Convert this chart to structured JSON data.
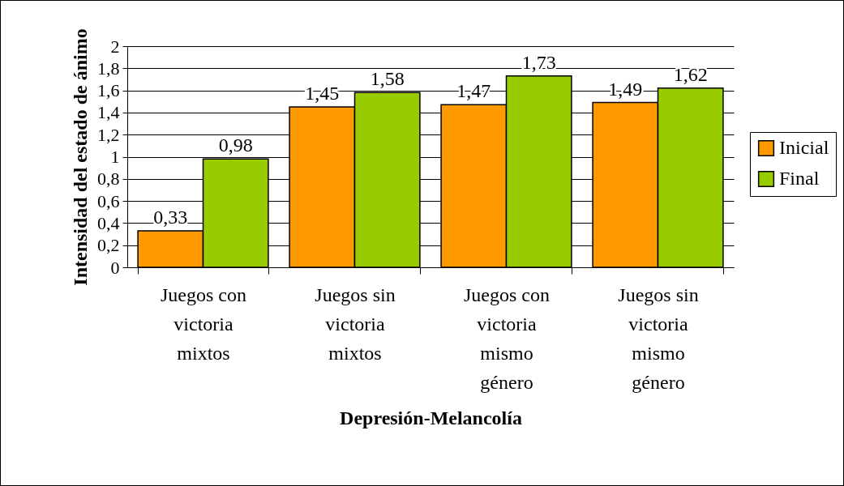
{
  "chart_data": {
    "type": "bar",
    "xlabel": "Depresión-Melancolía",
    "ylabel": "Intensidad del estado de ánimo",
    "categories": [
      "Juegos con\nvictoria\nmixtos",
      "Juegos sin\nvictoria\nmixtos",
      "Juegos con\nvictoria\nmismo\ngénero",
      "Juegos sin\nvictoria\nmismo\ngénero"
    ],
    "series": [
      {
        "name": "Inicial",
        "color": "#ff9900",
        "values": [
          0.33,
          1.45,
          1.47,
          1.49
        ],
        "value_labels": [
          "0,33",
          "1,45",
          "1,47",
          "1,49"
        ]
      },
      {
        "name": "Final",
        "color": "#99cc00",
        "values": [
          0.98,
          1.58,
          1.73,
          1.62
        ],
        "value_labels": [
          "0,98",
          "1,58",
          "1,73",
          "1,62"
        ]
      }
    ],
    "ylim": [
      0,
      2
    ],
    "yticks": [
      0,
      {
        "value": 0.2,
        "label": "0,2"
      },
      {
        "value": 0.4,
        "label": "0,4"
      },
      {
        "value": 0.6,
        "label": "0,6"
      },
      {
        "value": 0.8,
        "label": "0,8"
      },
      1,
      {
        "value": 1.2,
        "label": "1,2"
      },
      {
        "value": 1.4,
        "label": "1,4"
      },
      {
        "value": 1.6,
        "label": "1,6"
      },
      {
        "value": 1.8,
        "label": "1,8"
      },
      2
    ],
    "grid": "y",
    "legend": "right"
  }
}
